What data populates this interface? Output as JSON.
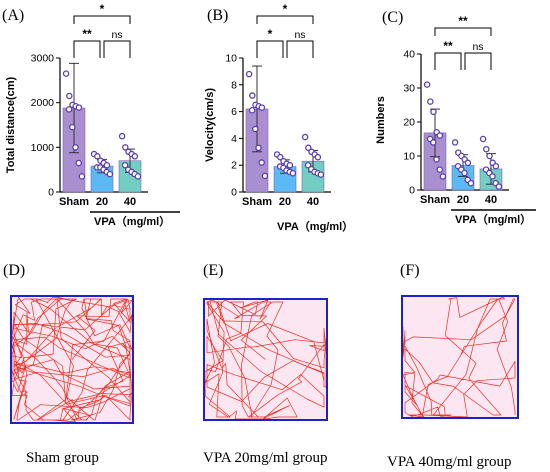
{
  "figure": {
    "panels": [
      {
        "label": "(A)"
      },
      {
        "label": "(B)"
      },
      {
        "label": "(C)"
      },
      {
        "label": "(D)"
      },
      {
        "label": "(E)"
      },
      {
        "label": "(F)"
      }
    ],
    "group_label": "VPA（mg/ml）",
    "captions": [
      "Sham group",
      "VPA 20mg/ml  group",
      "VPA  40mg/ml group"
    ],
    "colors": {
      "sham": "#a98fcf",
      "vpa20": "#5bbaf3",
      "vpa40": "#72cdc2",
      "dot": "#5b3fb0",
      "track": "#e8190a",
      "arena": "#1a22c8",
      "floor": "#fce6f1"
    }
  },
  "chart_data": [
    {
      "type": "bar",
      "panel": "(A)",
      "ylabel": "Total distance(cm)",
      "categories": [
        "Sham",
        "20",
        "40"
      ],
      "values": [
        1880,
        580,
        700
      ],
      "errors": [
        1000,
        150,
        260
      ],
      "ylim": [
        0,
        3000
      ],
      "yticks": [
        0,
        1000,
        2000,
        3000
      ],
      "points": [
        [
          2650,
          2150,
          1950,
          1920,
          1890,
          1850,
          1450,
          1000,
          650,
          350
        ],
        [
          850,
          800,
          700,
          650,
          600,
          550,
          550,
          500,
          450,
          400
        ],
        [
          1250,
          1000,
          900,
          850,
          800,
          600,
          500,
          450,
          400,
          350
        ]
      ],
      "significance": [
        {
          "pair": [
            "Sham",
            "40"
          ],
          "text": "*"
        },
        {
          "pair": [
            "Sham",
            "20"
          ],
          "text": "**"
        },
        {
          "pair": [
            "20",
            "40"
          ],
          "text": "ns"
        }
      ]
    },
    {
      "type": "bar",
      "panel": "(B)",
      "ylabel": "Velocity(cm/s)",
      "categories": [
        "Sham",
        "20",
        "40"
      ],
      "values": [
        6.2,
        1.9,
        2.3
      ],
      "errors": [
        3.2,
        0.5,
        0.8
      ],
      "ylim": [
        0,
        10
      ],
      "yticks": [
        0,
        2,
        4,
        6,
        8,
        10
      ],
      "points": [
        [
          8.8,
          7.2,
          6.5,
          6.4,
          6.3,
          6.1,
          4.7,
          3.3,
          2.2,
          1.2
        ],
        [
          2.8,
          2.6,
          2.3,
          2.1,
          2.0,
          1.9,
          1.8,
          1.6,
          1.5,
          1.4
        ],
        [
          4.1,
          3.3,
          3.0,
          2.8,
          2.6,
          2.0,
          1.7,
          1.5,
          1.4,
          1.3
        ]
      ],
      "significance": [
        {
          "pair": [
            "Sham",
            "40"
          ],
          "text": "*"
        },
        {
          "pair": [
            "Sham",
            "20"
          ],
          "text": "*"
        },
        {
          "pair": [
            "20",
            "40"
          ],
          "text": "ns"
        }
      ]
    },
    {
      "type": "bar",
      "panel": "(C)",
      "ylabel": "Numbers",
      "categories": [
        "Sham",
        "20",
        "40"
      ],
      "values": [
        16.8,
        7.2,
        6.2
      ],
      "errors": [
        7.0,
        3.2,
        4.5
      ],
      "ylim": [
        0,
        40
      ],
      "yticks": [
        0,
        10,
        20,
        30,
        40
      ],
      "points": [
        [
          31,
          26,
          23,
          17,
          16,
          15,
          14,
          9,
          6,
          4
        ],
        [
          14,
          11,
          10,
          9,
          8,
          7,
          6,
          5,
          3,
          2
        ],
        [
          15,
          12,
          10,
          8,
          7,
          6,
          5,
          4,
          2,
          1
        ]
      ],
      "significance": [
        {
          "pair": [
            "Sham",
            "40"
          ],
          "text": "**"
        },
        {
          "pair": [
            "Sham",
            "20"
          ],
          "text": "**"
        },
        {
          "pair": [
            "20",
            "40"
          ],
          "text": "ns"
        }
      ]
    }
  ]
}
